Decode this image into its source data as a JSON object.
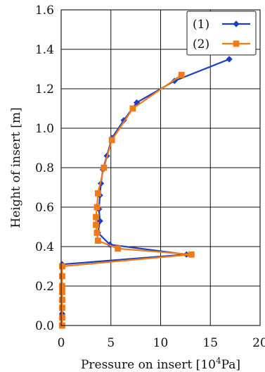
{
  "chart_data": {
    "type": "line",
    "xlabel": "Pressure on insert [10",
    "xlabel_sup": "4",
    "xlabel_unit": "Pa]",
    "ylabel": "Height of insert [m]",
    "xlim": [
      0,
      20
    ],
    "ylim": [
      0,
      1.6
    ],
    "x_ticks": [
      "0",
      "5",
      "10",
      "15",
      "20"
    ],
    "y_ticks": [
      "0.0",
      "0.2",
      "0.4",
      "0.6",
      "0.8",
      "1.0",
      "1.2",
      "1.4",
      "1.6"
    ],
    "grid": true,
    "legend_position": "top-right",
    "series": [
      {
        "name": "(1)",
        "color": "#1a3fbf",
        "marker": "diamond",
        "points": [
          [
            16.9,
            1.35
          ],
          [
            11.4,
            1.24
          ],
          [
            7.6,
            1.13
          ],
          [
            6.3,
            1.04
          ],
          [
            5.1,
            0.95
          ],
          [
            4.6,
            0.86
          ],
          [
            4.2,
            0.79
          ],
          [
            4.0,
            0.72
          ],
          [
            3.9,
            0.66
          ],
          [
            3.8,
            0.59
          ],
          [
            3.9,
            0.53
          ],
          [
            3.7,
            0.47
          ],
          [
            4.9,
            0.41
          ],
          [
            12.6,
            0.36
          ],
          [
            0.1,
            0.31
          ],
          [
            0.1,
            0.25
          ],
          [
            0.1,
            0.19
          ],
          [
            0.1,
            0.13
          ],
          [
            0.1,
            0.06
          ],
          [
            0.1,
            0.0
          ]
        ]
      },
      {
        "name": "(2)",
        "color": "#f07a1a",
        "marker": "square",
        "points": [
          [
            12.1,
            1.27
          ],
          [
            7.2,
            1.1
          ],
          [
            5.1,
            0.94
          ],
          [
            4.3,
            0.8
          ],
          [
            3.7,
            0.67
          ],
          [
            3.6,
            0.6
          ],
          [
            3.5,
            0.55
          ],
          [
            3.5,
            0.51
          ],
          [
            3.6,
            0.47
          ],
          [
            3.7,
            0.43
          ],
          [
            5.7,
            0.39
          ],
          [
            13.1,
            0.36
          ],
          [
            0.1,
            0.3
          ],
          [
            0.1,
            0.25
          ],
          [
            0.1,
            0.2
          ],
          [
            0.1,
            0.17
          ],
          [
            0.1,
            0.13
          ],
          [
            0.1,
            0.09
          ],
          [
            0.1,
            0.04
          ],
          [
            0.1,
            0.0
          ]
        ]
      }
    ]
  }
}
